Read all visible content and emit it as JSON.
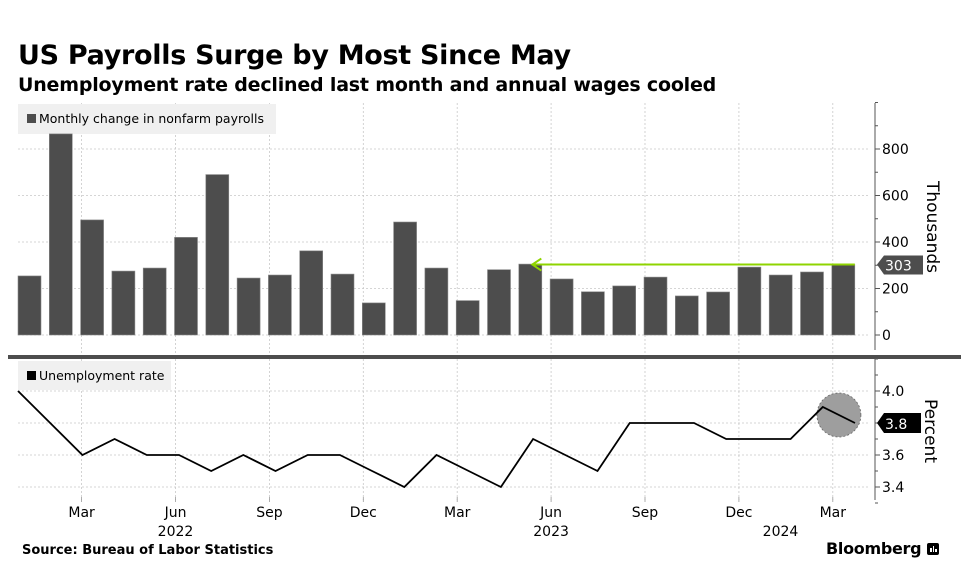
{
  "header": {
    "title": "US Payrolls Surge by Most Since May",
    "subtitle": "Unemployment rate declined last month and annual wages cooled"
  },
  "footer": {
    "source": "Source: Bureau of Labor Statistics",
    "brand": "Bloomberg"
  },
  "colors": {
    "bar": "#4d4d4d",
    "line": "#000000",
    "highlight_arrow": "#8fd400",
    "highlight_circle": "#9e9e9e",
    "grid": "#c8c8c8",
    "legend_bg": "#f0f0f0",
    "last_value_top_bg": "#4d4d4d",
    "last_value_bottom_bg": "#000000"
  },
  "chart_data": [
    {
      "type": "bar",
      "panel": "top",
      "legend": "Monthly change in nonfarm payrolls",
      "ylabel": "Thousands",
      "ylim": [
        0,
        1000
      ],
      "yticks": [
        0,
        200,
        400,
        600,
        800
      ],
      "ytick_labels": [
        "0",
        "200",
        "400",
        "600",
        "800"
      ],
      "grid": true,
      "legend_placement": "top-left",
      "categories": [
        "Jan 2022",
        "Feb 2022",
        "Mar 2022",
        "Apr 2022",
        "May 2022",
        "Jun 2022",
        "Jul 2022",
        "Aug 2022",
        "Sep 2022",
        "Oct 2022",
        "Nov 2022",
        "Dec 2022",
        "Jan 2023",
        "Feb 2023",
        "Mar 2023",
        "Apr 2023",
        "May 2023",
        "Jun 2023",
        "Jul 2023",
        "Aug 2023",
        "Sep 2023",
        "Oct 2023",
        "Nov 2023",
        "Dec 2023",
        "Jan 2024",
        "Feb 2024",
        "Mar 2024"
      ],
      "values": [
        254,
        865,
        495,
        275,
        288,
        420,
        690,
        245,
        258,
        362,
        262,
        138,
        486,
        288,
        148,
        281,
        305,
        241,
        186,
        211,
        249,
        168,
        185,
        292,
        258,
        271,
        303
      ],
      "last_value_label": "303",
      "annotation": "Arrow from latest value (303) back to May 2023 (most since May)"
    },
    {
      "type": "line",
      "panel": "bottom",
      "legend": "Unemployment rate",
      "ylabel": "Percent",
      "ylim": [
        3.3,
        4.2
      ],
      "yticks": [
        3.4,
        3.6,
        3.8,
        4.0
      ],
      "ytick_labels": [
        "3.4",
        "3.6",
        "3.8",
        "4.0"
      ],
      "grid": true,
      "legend_placement": "top-left",
      "x": [
        "Jan 2022",
        "Feb 2022",
        "Mar 2022",
        "Apr 2022",
        "May 2022",
        "Jun 2022",
        "Jul 2022",
        "Aug 2022",
        "Sep 2022",
        "Oct 2022",
        "Nov 2022",
        "Dec 2022",
        "Jan 2023",
        "Feb 2023",
        "Mar 2023",
        "Apr 2023",
        "May 2023",
        "Jun 2023",
        "Jul 2023",
        "Aug 2023",
        "Sep 2023",
        "Oct 2023",
        "Nov 2023",
        "Dec 2023",
        "Jan 2024",
        "Feb 2024",
        "Mar 2024"
      ],
      "values": [
        4.0,
        3.8,
        3.6,
        3.7,
        3.6,
        3.6,
        3.5,
        3.6,
        3.5,
        3.6,
        3.6,
        3.5,
        3.4,
        3.6,
        3.5,
        3.4,
        3.7,
        3.6,
        3.5,
        3.8,
        3.8,
        3.8,
        3.7,
        3.7,
        3.7,
        3.9,
        3.8
      ],
      "last_value_label": "3.8",
      "annotation": "Circle highlighting Feb–Mar 2024 decline"
    }
  ],
  "x_axis": {
    "month_ticks": [
      {
        "label": "Mar",
        "index": 2
      },
      {
        "label": "Jun",
        "index": 5
      },
      {
        "label": "Sep",
        "index": 8
      },
      {
        "label": "Dec",
        "index": 11
      },
      {
        "label": "Mar",
        "index": 14
      },
      {
        "label": "Jun",
        "index": 17
      },
      {
        "label": "Sep",
        "index": 20
      },
      {
        "label": "Dec",
        "index": 23
      },
      {
        "label": "Mar",
        "index": 26
      }
    ],
    "year_labels": [
      {
        "label": "2022",
        "index": 5
      },
      {
        "label": "2023",
        "index": 17
      },
      {
        "label": "2024",
        "index": 25
      }
    ]
  }
}
